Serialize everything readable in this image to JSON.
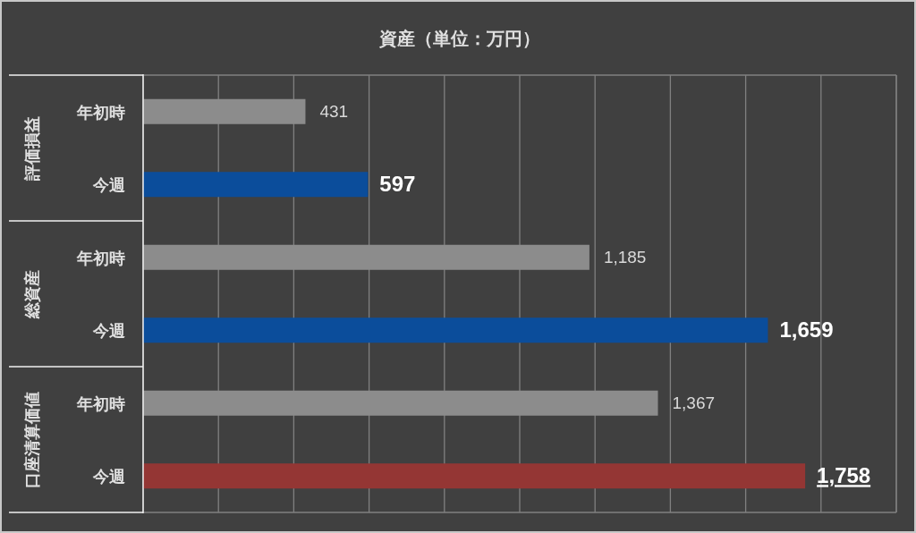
{
  "chart_data": {
    "type": "bar",
    "orientation": "horizontal",
    "title": "資産（単位：万円）",
    "categories": [
      "年初時",
      "今週",
      "年初時",
      "今週",
      "年初時",
      "今週"
    ],
    "values": [
      431,
      597,
      1185,
      1659,
      1367,
      1758
    ],
    "colors": [
      "#8c8c8c",
      "#0b4d9b",
      "#8c8c8c",
      "#0b4d9b",
      "#8c8c8c",
      "#943634"
    ],
    "value_labels": [
      "431",
      "597",
      "1,185",
      "1,659",
      "1,367",
      "1,758"
    ],
    "annotations": [
      "評価損益",
      "総資産",
      "口座清算価値"
    ],
    "xlim": [
      0,
      2000
    ],
    "xticks": [
      {
        "value": 0,
        "label": null
      },
      {
        "value": 200,
        "label": null
      },
      {
        "value": 400,
        "label": null
      },
      {
        "value": 600,
        "label": null
      },
      {
        "value": 800,
        "label": null
      },
      {
        "value": 1000,
        "label": null
      },
      {
        "value": 1200,
        "label": null
      },
      {
        "value": 1400,
        "label": null
      },
      {
        "value": 1600,
        "label": null
      },
      {
        "value": 1800,
        "label": null
      },
      {
        "value": 2000,
        "label": null
      }
    ],
    "grid": "x",
    "tick_labels": "y"
  }
}
